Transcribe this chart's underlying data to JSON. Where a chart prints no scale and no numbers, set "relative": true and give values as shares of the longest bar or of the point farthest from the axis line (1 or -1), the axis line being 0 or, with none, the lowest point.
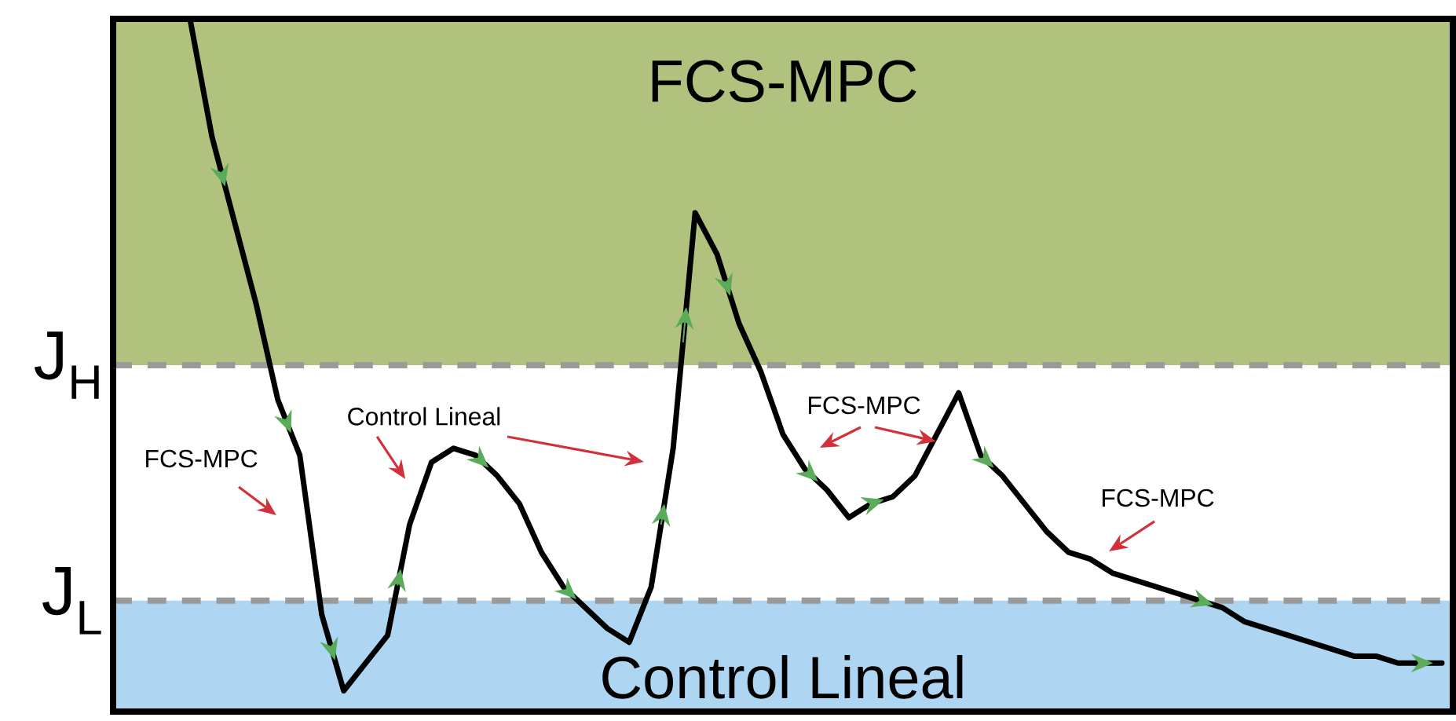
{
  "chart_data": {
    "type": "line",
    "relative": true,
    "categories": [
      null,
      null,
      null,
      null,
      null,
      null,
      null,
      null,
      null,
      null,
      null,
      null,
      null,
      null,
      null,
      null,
      null,
      null,
      null,
      null,
      null,
      null,
      null,
      null,
      null,
      null,
      null,
      null,
      null,
      null,
      null,
      null,
      null,
      null,
      null,
      null,
      null,
      null,
      null,
      null,
      null,
      null,
      null,
      null,
      null,
      null,
      null,
      null,
      null,
      null,
      null,
      null,
      null,
      null,
      null,
      null,
      null,
      null,
      null,
      null,
      null
    ],
    "series": [
      {
        "color": "#000000",
        "values": [
          null,
          null,
          null,
          1.0,
          0.83,
          0.71,
          0.59,
          0.45,
          0.37,
          0.14,
          0.03,
          0.07,
          0.11,
          0.27,
          0.36,
          0.38,
          0.37,
          0.34,
          0.3,
          0.23,
          0.18,
          0.15,
          0.12,
          0.1,
          0.18,
          0.38,
          0.72,
          0.66,
          0.56,
          0.49,
          0.4,
          0.35,
          0.32,
          0.28,
          0.3,
          0.31,
          0.34,
          0.4,
          0.46,
          0.37,
          0.34,
          0.3,
          0.26,
          0.23,
          0.22,
          0.2,
          0.19,
          0.18,
          0.17,
          0.16,
          0.15,
          0.13,
          0.12,
          0.11,
          0.1,
          0.09,
          0.08,
          0.08,
          0.07,
          0.07,
          0.07
        ]
      }
    ],
    "ref_lines": [
      {
        "axis": "y",
        "value": 0.5,
        "label": "J$_{H}$",
        "color": "#9a9a9a",
        "line_style": "dashed"
      },
      {
        "axis": "y",
        "value": 0.16,
        "label": "J$_{L}$",
        "color": "#9a9a9a",
        "line_style": "dashed"
      }
    ],
    "bands": [
      {
        "axis": "y",
        "from": 0.5,
        "to": 1.0,
        "label": "FCS-MPC",
        "color": "#b1c27f"
      },
      {
        "axis": "y",
        "from": 0.0,
        "to": 0.16,
        "label": "Control Lineal",
        "color": "#aed5f1"
      }
    ],
    "annotations": [
      "FCS-MPC",
      "Control Lineal",
      "FCS-MPC",
      "FCS-MPC"
    ],
    "line_style": "solid",
    "marker": "none"
  }
}
